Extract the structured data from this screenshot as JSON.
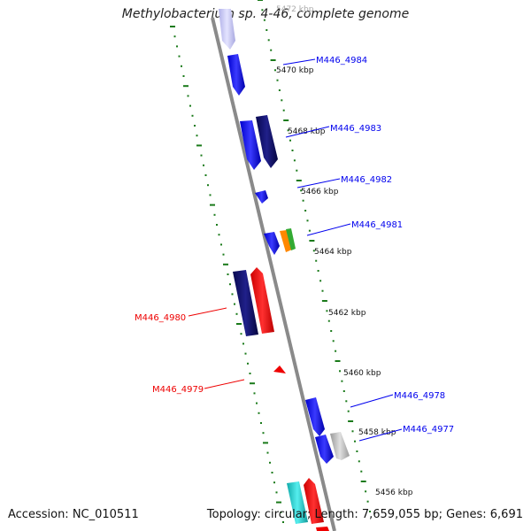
{
  "title": "Methylobacterium sp. 4-46, complete genome",
  "footer": {
    "accession": "Accession: NC_010511",
    "summary": "Topology: circular; Length: 7,659,055 bp; Genes: 6,691"
  },
  "ruler_labels": [
    "5472 kbp",
    "5470 kbp",
    "5468 kbp",
    "5466 kbp",
    "5464 kbp",
    "5462 kbp",
    "5460 kbp",
    "5458 kbp",
    "5456 kbp"
  ],
  "gene_labels": [
    {
      "text": "M446_4984",
      "color": "#0000ee"
    },
    {
      "text": "M446_4983",
      "color": "#0000ee"
    },
    {
      "text": "M446_4982",
      "color": "#0000ee"
    },
    {
      "text": "M446_4981",
      "color": "#0000ee"
    },
    {
      "text": "M446_4980",
      "color": "#ee0000"
    },
    {
      "text": "M446_4979",
      "color": "#ee0000"
    },
    {
      "text": "M446_4978",
      "color": "#0000ee"
    },
    {
      "text": "M446_4977",
      "color": "#0000ee"
    }
  ],
  "colors": {
    "backbone": "#8a8a8a",
    "ruler": "#1a7a1a",
    "forward": "#0000ee",
    "forward_dark": "#0b0b6e",
    "reverse": "#ee0000",
    "faded": "#c8c8f0",
    "gray": "#bbbbbb",
    "cyan": "#22cccc",
    "orange": "#ff8800",
    "green": "#33aa33"
  }
}
